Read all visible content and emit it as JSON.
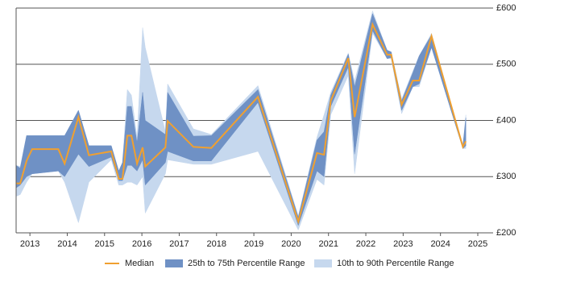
{
  "chart_data": {
    "type": "line",
    "x": [
      2012.63,
      2012.74,
      2012.91,
      2013.06,
      2013.76,
      2013.93,
      2014.3,
      2014.58,
      2015.18,
      2015.38,
      2015.48,
      2015.61,
      2015.72,
      2015.87,
      2016.02,
      2016.09,
      2016.63,
      2016.69,
      2017.38,
      2017.86,
      2019.11,
      2020.19,
      2020.69,
      2020.88,
      2021.06,
      2021.53,
      2021.7,
      2022.18,
      2022.57,
      2022.68,
      2022.96,
      2023.26,
      2023.43,
      2023.76,
      2024.6,
      2024.68
    ],
    "series": [
      {
        "name": "10th to 90th Percentile Range",
        "color": "#c6d8ee",
        "low": [
          265,
          268,
          290,
          305,
          310,
          290,
          218,
          290,
          330,
          285,
          285,
          290,
          290,
          285,
          300,
          235,
          305,
          330,
          322,
          322,
          345,
          205,
          295,
          285,
          410,
          480,
          305,
          555,
          510,
          510,
          412,
          460,
          460,
          530,
          350,
          350
        ],
        "high": [
          320,
          318,
          373,
          373,
          373,
          373,
          418,
          355,
          355,
          310,
          325,
          455,
          445,
          370,
          565,
          530,
          380,
          465,
          385,
          375,
          462,
          230,
          370,
          410,
          450,
          520,
          470,
          595,
          525,
          522,
          438,
          488,
          515,
          555,
          355,
          410
        ]
      },
      {
        "name": "25th to 75th Percentile Range",
        "color": "#6f91c5",
        "low": [
          280,
          285,
          300,
          305,
          310,
          300,
          340,
          318,
          335,
          293,
          293,
          320,
          320,
          310,
          330,
          285,
          325,
          345,
          328,
          328,
          432,
          213,
          310,
          300,
          425,
          495,
          340,
          560,
          510,
          512,
          418,
          460,
          465,
          530,
          350,
          355
        ],
        "high": [
          320,
          315,
          373,
          373,
          373,
          373,
          418,
          355,
          355,
          310,
          325,
          425,
          425,
          360,
          450,
          400,
          375,
          450,
          372,
          373,
          455,
          228,
          365,
          380,
          445,
          518,
          460,
          590,
          525,
          522,
          435,
          485,
          515,
          552,
          355,
          405
        ]
      },
      {
        "name": "Median",
        "color": "#f0a030",
        "values": [
          288,
          288,
          328,
          349,
          349,
          323,
          406,
          338,
          345,
          296,
          296,
          373,
          373,
          323,
          352,
          318,
          352,
          399,
          353,
          351,
          442,
          220,
          342,
          339,
          435,
          511,
          406,
          571,
          517,
          517,
          428,
          471,
          471,
          550,
          353,
          363
        ]
      }
    ],
    "xlim": [
      2012.63,
      2025.41
    ],
    "xticks": [
      2013,
      2014,
      2015,
      2016,
      2017,
      2018,
      2019,
      2020,
      2021,
      2022,
      2023,
      2024,
      2025
    ],
    "ylim": [
      200,
      600
    ],
    "yticks": [
      {
        "value": 200,
        "label": "£200"
      },
      {
        "value": 300,
        "label": "£300"
      },
      {
        "value": 400,
        "label": "£400"
      },
      {
        "value": 500,
        "label": "£500"
      },
      {
        "value": 600,
        "label": "£600"
      }
    ],
    "grid": true,
    "legend": "bottom"
  }
}
